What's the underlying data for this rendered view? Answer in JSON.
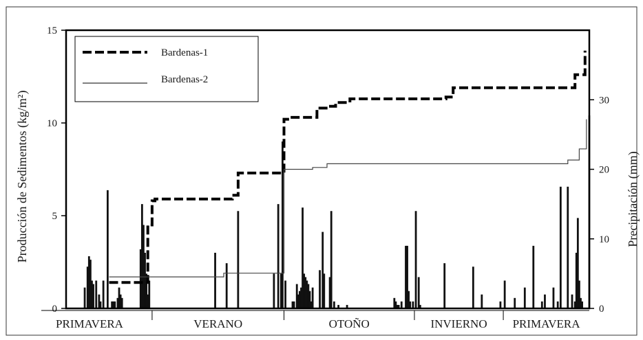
{
  "chart_data": {
    "type": "line",
    "title": "",
    "ylabel_left": "Producción de Sedimentos (kg/m²)",
    "ylabel_right": "Precipitación (mm)",
    "ylim_left": [
      0,
      15
    ],
    "yticks_left": [
      "0",
      "5",
      "10",
      "15"
    ],
    "ylim_right": [
      0,
      40
    ],
    "yticks_right": [
      "0",
      "10",
      "20",
      "30"
    ],
    "xlim": [
      0,
      365
    ],
    "seasons": [
      {
        "label": "PRIMAVERA",
        "start": 0,
        "end": 60
      },
      {
        "label": "VERANO",
        "start": 60,
        "end": 152
      },
      {
        "label": "OTOÑO",
        "start": 152,
        "end": 243
      },
      {
        "label": "INVIERNO",
        "start": 243,
        "end": 305
      },
      {
        "label": "PRIMAVERA",
        "start": 305,
        "end": 365
      }
    ],
    "legend_position": "top-left",
    "series": [
      {
        "name": "Bardenas-1",
        "style": "dashed",
        "color": "#000000",
        "points": [
          [
            30,
            1.4
          ],
          [
            55,
            1.4
          ],
          [
            57,
            4.5
          ],
          [
            60,
            5.8
          ],
          [
            62,
            5.9
          ],
          [
            107,
            5.9
          ],
          [
            116,
            6.1
          ],
          [
            120,
            7.3
          ],
          [
            150,
            7.3
          ],
          [
            152,
            10.2
          ],
          [
            156,
            10.3
          ],
          [
            172,
            10.3
          ],
          [
            175,
            10.8
          ],
          [
            183,
            10.9
          ],
          [
            188,
            11.1
          ],
          [
            198,
            11.3
          ],
          [
            265,
            11.4
          ],
          [
            270,
            11.9
          ],
          [
            352,
            11.9
          ],
          [
            355,
            12.6
          ],
          [
            360,
            12.6
          ],
          [
            362,
            13.9
          ]
        ]
      },
      {
        "name": "Bardenas-2",
        "style": "solid",
        "color": "#444444",
        "points": [
          [
            30,
            1.7
          ],
          [
            107,
            1.7
          ],
          [
            110,
            1.9
          ],
          [
            150,
            1.9
          ],
          [
            152,
            7.5
          ],
          [
            170,
            7.5
          ],
          [
            172,
            7.6
          ],
          [
            180,
            7.6
          ],
          [
            182,
            7.8
          ],
          [
            345,
            7.8
          ],
          [
            350,
            8.0
          ],
          [
            355,
            8.0
          ],
          [
            358,
            8.6
          ],
          [
            362,
            8.6
          ],
          [
            363,
            10.2
          ]
        ]
      }
    ],
    "precipitation_mm": {
      "x": [
        13,
        15,
        16,
        17,
        18,
        19,
        21,
        23,
        24,
        26,
        29,
        32,
        33,
        34,
        36,
        37,
        38,
        39,
        52,
        53,
        54,
        55,
        56,
        57,
        58,
        104,
        112,
        120,
        145,
        148,
        150,
        151,
        153,
        158,
        159,
        161,
        162,
        163,
        164,
        165,
        166,
        167,
        168,
        169,
        170,
        171,
        172,
        177,
        179,
        180,
        184,
        185,
        187,
        190,
        196,
        229,
        230,
        231,
        232,
        234,
        237,
        238,
        239,
        240,
        242,
        244,
        246,
        247,
        264,
        284,
        290,
        303,
        306,
        313,
        320,
        326,
        332,
        334,
        340,
        343,
        345,
        350,
        353,
        355,
        356,
        357,
        358,
        359,
        360
      ],
      "y": [
        3,
        6,
        7.5,
        7,
        4,
        3.5,
        4,
        2,
        1,
        4,
        17,
        1,
        1,
        1,
        1.5,
        3,
        2,
        1.5,
        8.5,
        15,
        12,
        8,
        5,
        2,
        4,
        8,
        6.5,
        14,
        5,
        15,
        5,
        24,
        4,
        1,
        1,
        3.5,
        2,
        2.5,
        3,
        14.5,
        5,
        4.5,
        4,
        3.5,
        2.5,
        1,
        3,
        5.5,
        11,
        5,
        4.5,
        14,
        1,
        0.5,
        0.5,
        1.5,
        1,
        0.5,
        0.5,
        1,
        9,
        9,
        2.5,
        1,
        1,
        14,
        4.5,
        0.5,
        6.5,
        6,
        2,
        1,
        4,
        1.5,
        3,
        9,
        1,
        2,
        3,
        1,
        17.5,
        17.5,
        2,
        1,
        8,
        13,
        4,
        1.5,
        1
      ]
    }
  }
}
